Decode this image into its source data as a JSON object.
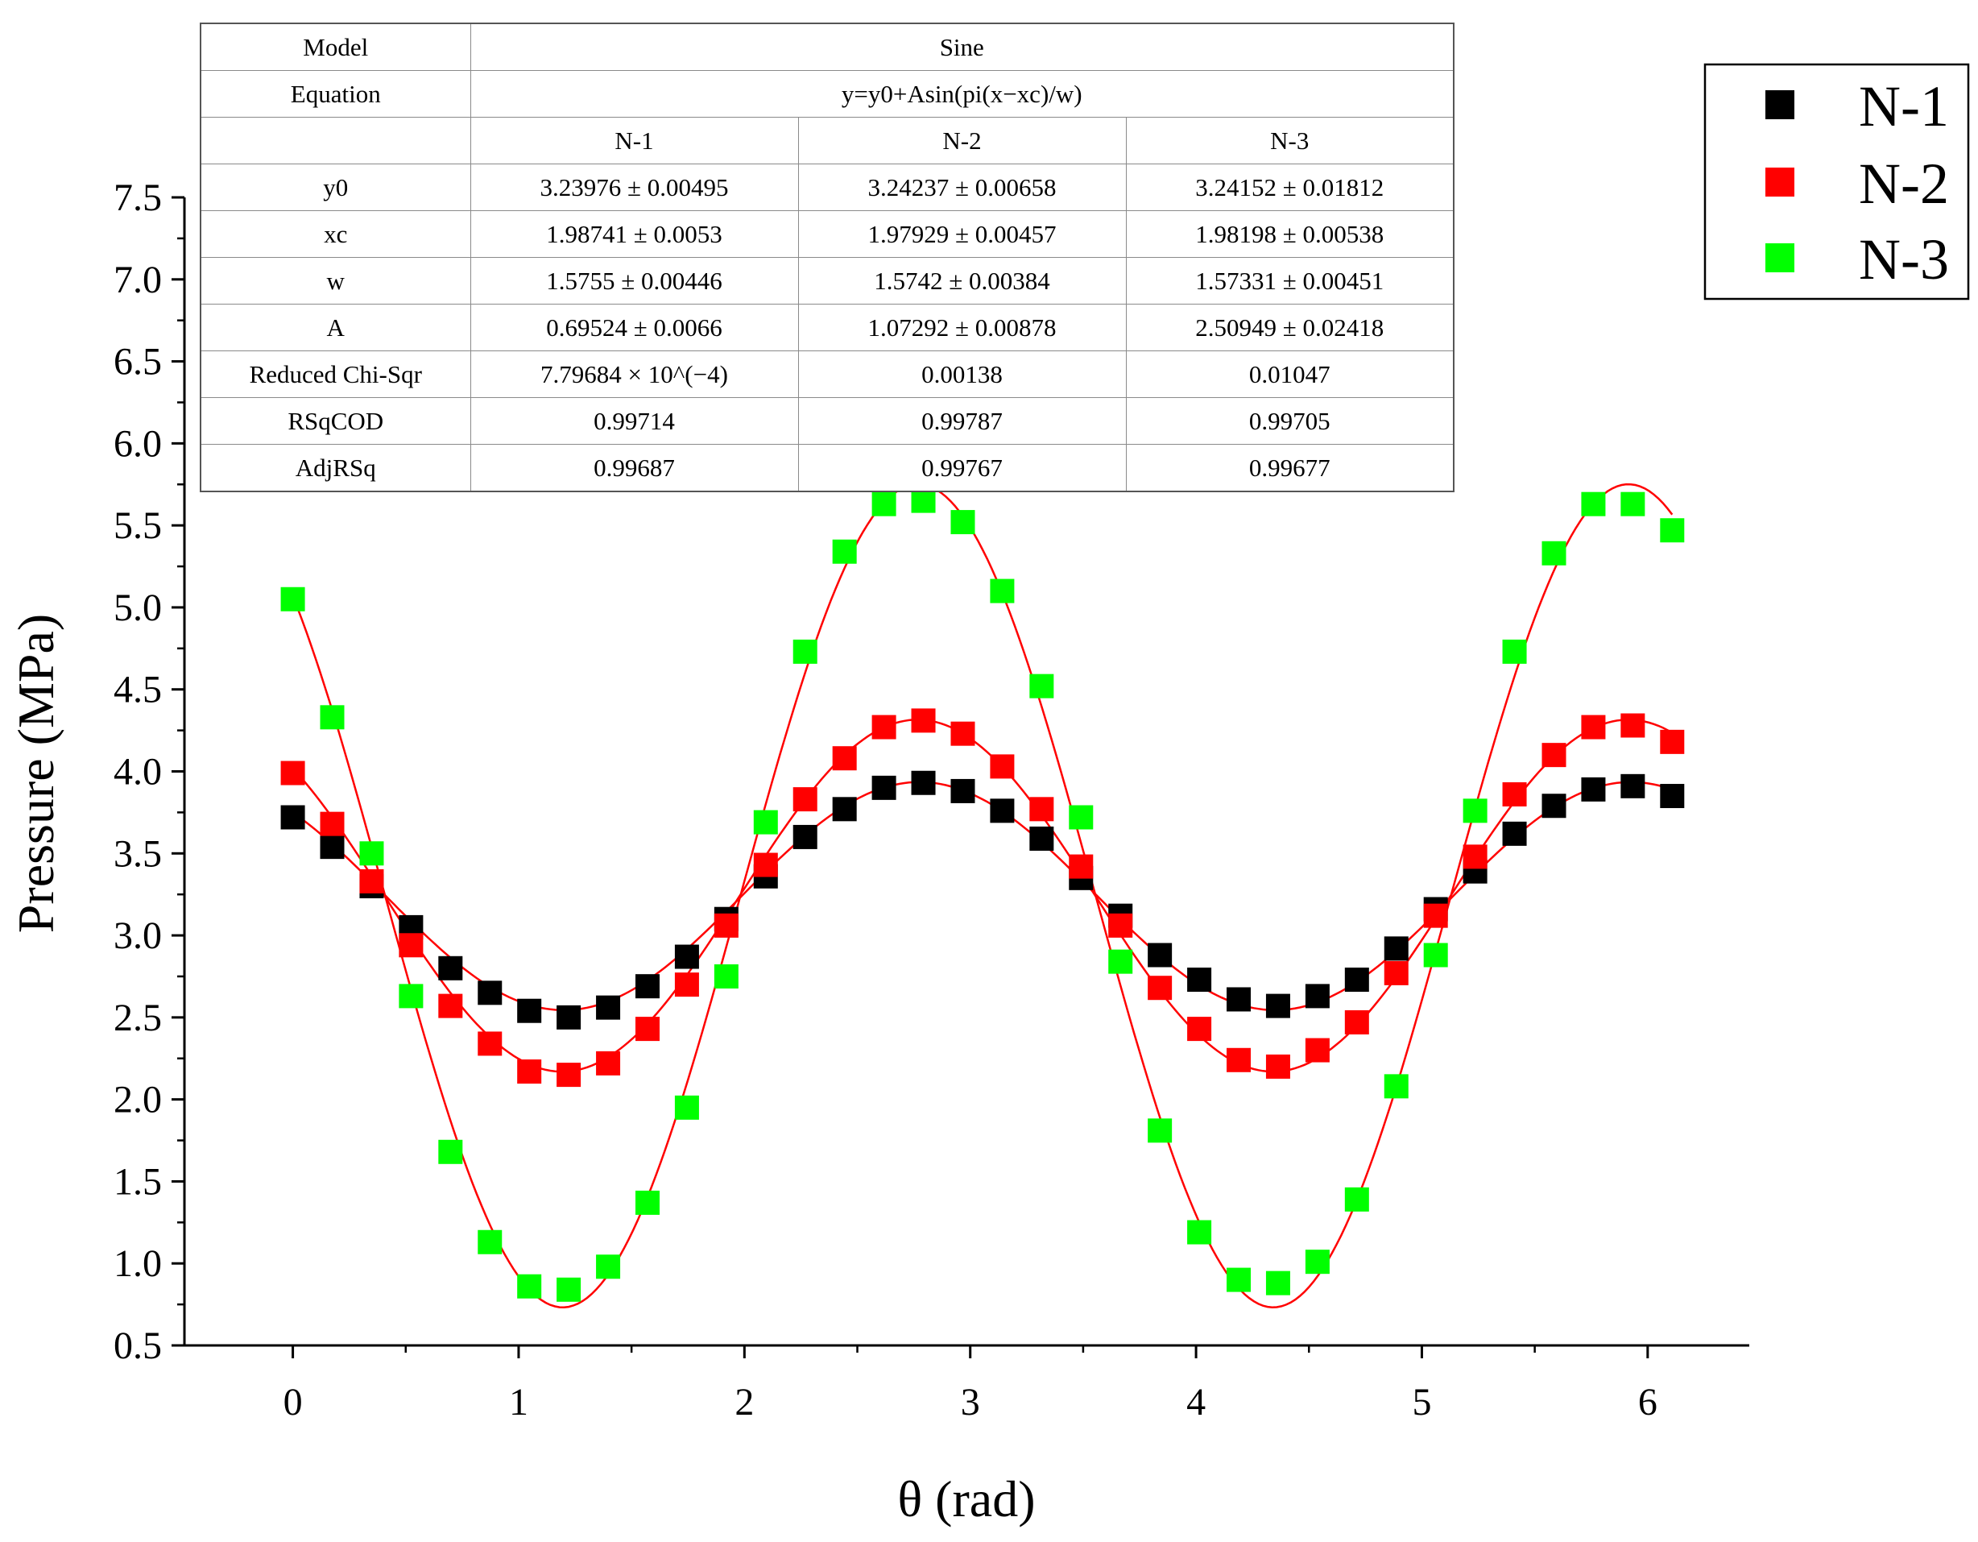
{
  "chart_data": {
    "type": "scatter",
    "title": "",
    "xlabel": "θ (rad)",
    "ylabel": "Pressure (MPa)",
    "xlim": [
      -0.48,
      6.45
    ],
    "ylim": [
      0.5,
      7.5
    ],
    "xticks": [
      0,
      1,
      2,
      3,
      4,
      5,
      6
    ],
    "xtick_labels": [
      "0",
      "1",
      "2",
      "3",
      "4",
      "5",
      "6"
    ],
    "yticks": [
      0.5,
      1.0,
      1.5,
      2.0,
      2.5,
      3.0,
      3.5,
      4.0,
      4.5,
      5.0,
      5.5,
      6.0,
      6.5,
      7.0,
      7.5
    ],
    "ytick_labels": [
      "0.5",
      "1.0",
      "1.5",
      "2.0",
      "2.5",
      "3.0",
      "3.5",
      "4.0",
      "4.5",
      "5.0",
      "5.5",
      "6.0",
      "6.5",
      "7.0",
      "7.5"
    ],
    "legend_position": "top-right outside",
    "x": [
      0,
      0.1745,
      0.3491,
      0.5236,
      0.6981,
      0.8727,
      1.0472,
      1.2217,
      1.3963,
      1.5708,
      1.7453,
      1.9199,
      2.0944,
      2.2689,
      2.4435,
      2.618,
      2.7925,
      2.9671,
      3.1416,
      3.3161,
      3.4907,
      3.6652,
      3.8397,
      4.0143,
      4.1888,
      4.3633,
      4.5379,
      4.7124,
      4.8869,
      5.0615,
      5.236,
      5.4105,
      5.5851,
      5.7596,
      5.9341,
      6.1087
    ],
    "series": [
      {
        "name": "N-1",
        "color": "#000000",
        "values": [
          3.72,
          3.54,
          3.3,
          3.05,
          2.8,
          2.65,
          2.54,
          2.5,
          2.56,
          2.69,
          2.87,
          3.1,
          3.36,
          3.6,
          3.77,
          3.9,
          3.93,
          3.88,
          3.76,
          3.59,
          3.35,
          3.12,
          2.88,
          2.73,
          2.61,
          2.57,
          2.63,
          2.73,
          2.92,
          3.16,
          3.39,
          3.62,
          3.79,
          3.89,
          3.91,
          3.85
        ]
      },
      {
        "name": "N-2",
        "color": "#ff0000",
        "values": [
          3.99,
          3.68,
          3.33,
          2.94,
          2.57,
          2.34,
          2.17,
          2.15,
          2.22,
          2.43,
          2.7,
          3.06,
          3.43,
          3.83,
          4.08,
          4.27,
          4.31,
          4.23,
          4.03,
          3.77,
          3.42,
          3.06,
          2.68,
          2.43,
          2.24,
          2.2,
          2.3,
          2.47,
          2.77,
          3.12,
          3.48,
          3.86,
          4.1,
          4.27,
          4.28,
          4.18
        ]
      },
      {
        "name": "N-3",
        "color": "#00ff00",
        "values": [
          5.05,
          4.33,
          3.5,
          2.63,
          1.68,
          1.13,
          0.86,
          0.84,
          0.98,
          1.37,
          1.95,
          2.75,
          3.69,
          4.73,
          5.34,
          5.63,
          5.65,
          5.52,
          5.1,
          4.52,
          3.72,
          2.84,
          1.81,
          1.19,
          0.9,
          0.88,
          1.01,
          1.39,
          2.08,
          2.88,
          3.76,
          4.73,
          5.33,
          5.63,
          5.63,
          5.47
        ]
      }
    ],
    "fits": [
      {
        "series": "N-1",
        "y0": 3.23976,
        "xc": 1.98741,
        "w": 1.5755,
        "A": 0.69524
      },
      {
        "series": "N-2",
        "y0": 3.24237,
        "xc": 1.97929,
        "w": 1.5742,
        "A": 1.07292
      },
      {
        "series": "N-3",
        "y0": 3.24152,
        "xc": 1.98198,
        "w": 1.57331,
        "A": 2.50949
      }
    ],
    "fit_color": "#ff0000",
    "table": {
      "rows": [
        {
          "label": "Model",
          "span": "Sine"
        },
        {
          "label": "Equation",
          "span": "y=y0+Asin(pi(x−xc)/w)"
        },
        {
          "label": "",
          "cells": [
            "N-1",
            "N-2",
            "N-3"
          ]
        },
        {
          "label": "y0",
          "cells": [
            "3.23976 ± 0.00495",
            "3.24237 ± 0.00658",
            "3.24152 ± 0.01812"
          ]
        },
        {
          "label": "xc",
          "cells": [
            "1.98741 ± 0.0053",
            "1.97929 ± 0.00457",
            "1.98198 ± 0.00538"
          ]
        },
        {
          "label": "w",
          "cells": [
            "1.5755 ± 0.00446",
            "1.5742 ± 0.00384",
            "1.57331 ± 0.00451"
          ]
        },
        {
          "label": "A",
          "cells": [
            "0.69524 ± 0.0066",
            "1.07292 ± 0.00878",
            "2.50949 ± 0.02418"
          ]
        },
        {
          "label": "Reduced Chi-Sqr",
          "cells": [
            "7.79684 × 10^(−4)",
            "0.00138",
            "0.01047"
          ]
        },
        {
          "label": "RSqCOD",
          "cells": [
            "0.99714",
            "0.99787",
            "0.99705"
          ]
        },
        {
          "label": "AdjRSq",
          "cells": [
            "0.99687",
            "0.99767",
            "0.99677"
          ]
        }
      ]
    }
  }
}
